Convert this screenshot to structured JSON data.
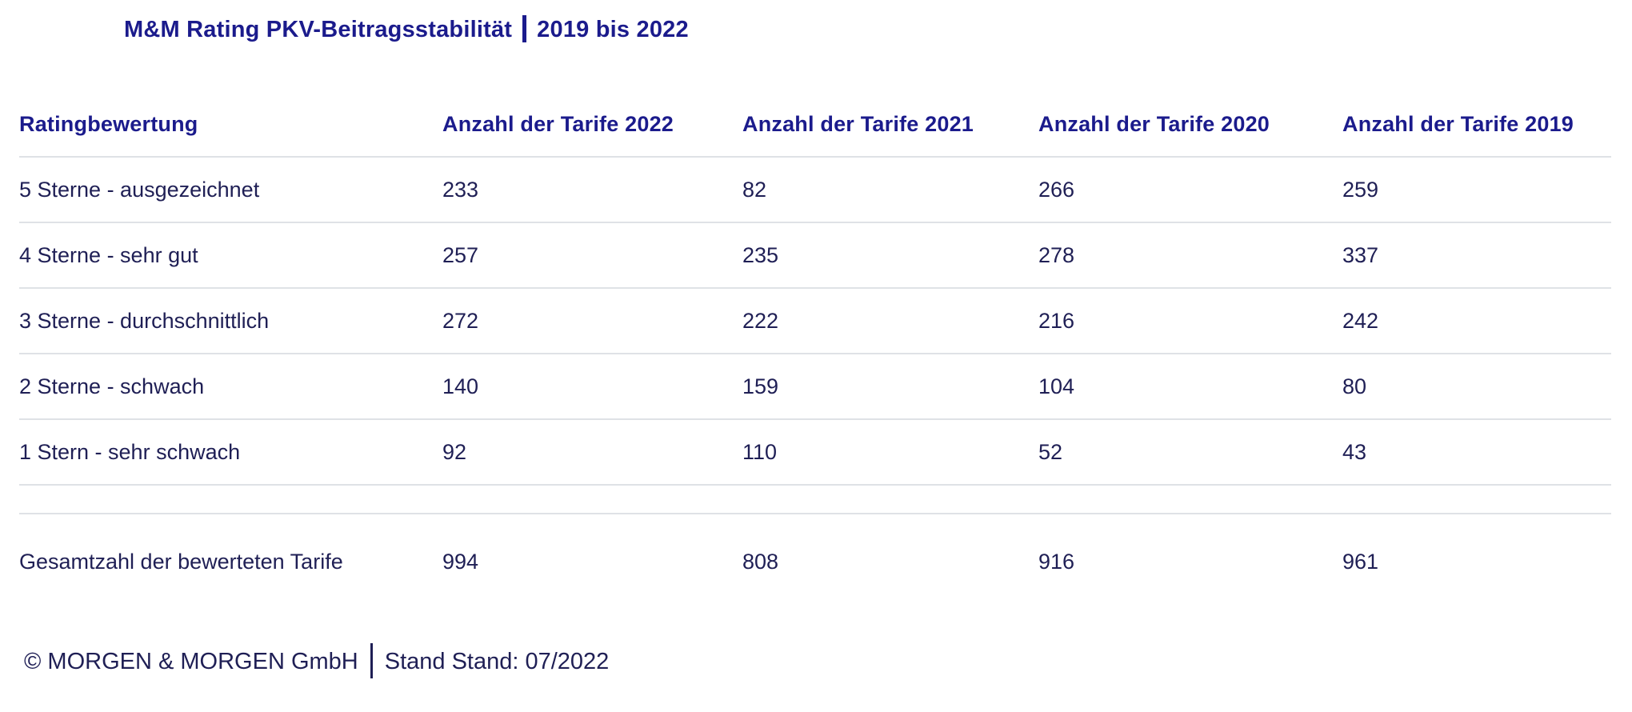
{
  "title": {
    "left": "M&M Rating PKV-Beitragsstabilität",
    "right": "2019 bis 2022"
  },
  "header": {
    "row_label_column": "Ratingbewertung"
  },
  "chart_data": {
    "type": "table",
    "title": "M&M Rating PKV-Beitragsstabilität | 2019 bis 2022",
    "categories": [
      "5 Sterne - ausgezeichnet",
      "4 Sterne - sehr gut",
      "3 Sterne - durchschnittlich",
      "2 Sterne - schwach",
      "1 Stern - sehr schwach",
      "Gesamtzahl der bewerteten Tarife"
    ],
    "series": [
      {
        "name": "Anzahl der Tarife 2022",
        "values": [
          233,
          257,
          272,
          140,
          92,
          994
        ]
      },
      {
        "name": "Anzahl der Tarife 2021",
        "values": [
          82,
          235,
          222,
          159,
          110,
          808
        ]
      },
      {
        "name": "Anzahl der Tarife 2020",
        "values": [
          266,
          278,
          216,
          104,
          52,
          916
        ]
      },
      {
        "name": "Anzahl der Tarife 2019",
        "values": [
          259,
          337,
          242,
          80,
          43,
          961
        ]
      }
    ],
    "row_label_header": "Ratingbewertung",
    "note": "© MORGEN & MORGEN GmbH | Stand Stand: 07/2022"
  },
  "footer": {
    "copyright": "© MORGEN & MORGEN GmbH",
    "stand": "Stand Stand: 07/2022"
  },
  "colors": {
    "accent_navy": "#1b1b8c",
    "body_text": "#1f1f55",
    "row_border": "#dfe2e6",
    "background": "#ffffff"
  }
}
